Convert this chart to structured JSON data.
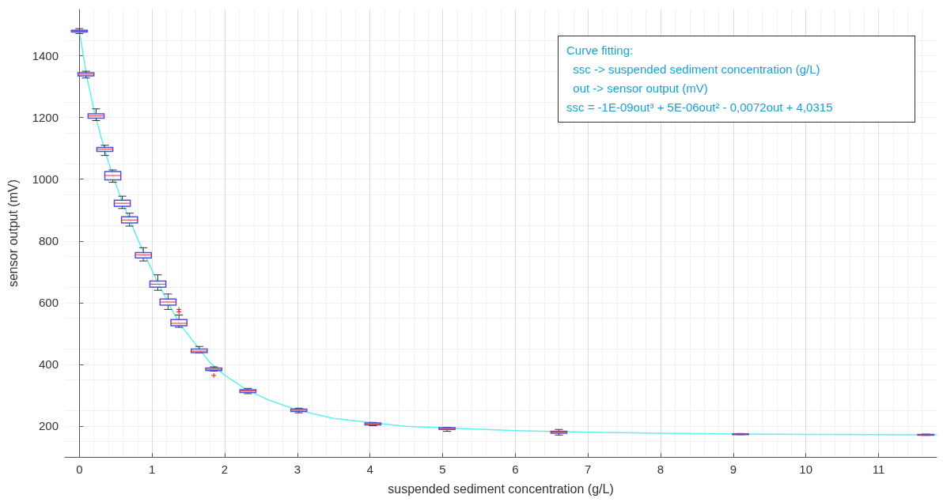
{
  "chart_data": {
    "type": "box",
    "xlabel": "suspended sediment concentration (g/L)",
    "ylabel": "sensor output (mV)",
    "xlim": [
      -0.2,
      11.8
    ],
    "xticks": [
      0,
      1,
      2,
      3,
      4,
      5,
      6,
      7,
      8,
      9,
      10,
      11
    ],
    "ylim": [
      100,
      1550
    ],
    "yticks": [
      200,
      400,
      600,
      800,
      1000,
      1200,
      1400
    ],
    "grid": true,
    "annotations": [
      "Curve fitting:",
      "  ssc -> suspended sediment concentration (g/L)",
      "  out -> sensor output (mV)",
      "ssc = -1E-09out³ + 5E-06out² - 0,0072out + 4,0315"
    ],
    "series": [
      {
        "type": "line",
        "color": "#5ff0f0",
        "marker": "none",
        "line_style": "solid",
        "x": [
          0,
          0.1,
          0.2,
          0.3,
          0.4,
          0.5,
          0.6,
          0.8,
          0.9,
          1.0,
          1.1,
          1.2,
          1.3,
          1.4,
          1.6,
          1.8,
          2.0,
          2.3,
          2.6,
          3.0,
          3.5,
          4.5,
          6.0,
          7.0,
          8.0,
          9.0,
          10.0,
          11.8
        ],
        "values": [
          1480,
          1335,
          1225,
          1135,
          1055,
          985,
          920,
          808,
          755,
          705,
          655,
          610,
          565,
          525,
          465,
          405,
          365,
          318,
          285,
          252,
          225,
          199,
          185,
          180,
          177,
          174,
          173,
          172
        ]
      },
      {
        "color": "#5050e0",
        "x": [
          0,
          0.09,
          0.23,
          0.35,
          0.46,
          0.59,
          0.69,
          0.88,
          1.08,
          1.22,
          1.37,
          1.65,
          1.85,
          2.32,
          3.02,
          4.04,
          5.06,
          6.6,
          9.1,
          11.65
        ],
        "boxes": [
          {
            "low": 1472,
            "q1": 1477,
            "median": 1480,
            "q3": 1483,
            "high": 1488
          },
          {
            "low": 1328,
            "q1": 1335,
            "median": 1340,
            "q3": 1345,
            "high": 1350
          },
          {
            "low": 1190,
            "q1": 1198,
            "median": 1205,
            "q3": 1212,
            "high": 1228
          },
          {
            "low": 1077,
            "q1": 1090,
            "median": 1097,
            "q3": 1103,
            "high": 1110
          },
          {
            "low": 990,
            "q1": 998,
            "median": 1012,
            "q3": 1025,
            "high": 1030
          },
          {
            "low": 905,
            "q1": 912,
            "median": 922,
            "q3": 932,
            "high": 945
          },
          {
            "low": 848,
            "q1": 858,
            "median": 868,
            "q3": 878,
            "high": 890
          },
          {
            "low": 735,
            "q1": 745,
            "median": 755,
            "q3": 762,
            "high": 778
          },
          {
            "low": 640,
            "q1": 650,
            "median": 660,
            "q3": 670,
            "high": 690
          },
          {
            "low": 578,
            "q1": 592,
            "median": 602,
            "q3": 612,
            "high": 628
          },
          {
            "low": 520,
            "q1": 525,
            "median": 533,
            "q3": 545,
            "high": 560,
            "outliers": [
              570,
              578
            ]
          },
          {
            "low": 437,
            "q1": 438,
            "median": 443,
            "q3": 450,
            "high": 458
          },
          {
            "low": 378,
            "q1": 380,
            "median": 384,
            "q3": 388,
            "high": 392,
            "outliers": [
              364
            ]
          },
          {
            "low": 305,
            "q1": 309,
            "median": 314,
            "q3": 318,
            "high": 322
          },
          {
            "low": 243,
            "q1": 247,
            "median": 251,
            "q3": 255,
            "high": 258
          },
          {
            "low": 201,
            "q1": 204,
            "median": 207,
            "q3": 210,
            "high": 212
          },
          {
            "low": 183,
            "q1": 189,
            "median": 192,
            "q3": 195,
            "high": 196
          },
          {
            "low": 171,
            "q1": 177,
            "median": 180,
            "q3": 183,
            "high": 189
          },
          {
            "low": 172,
            "q1": 173,
            "median": 174,
            "q3": 175,
            "high": 176
          },
          {
            "low": 170,
            "q1": 171,
            "median": 172,
            "q3": 173,
            "high": 174
          }
        ]
      }
    ]
  }
}
